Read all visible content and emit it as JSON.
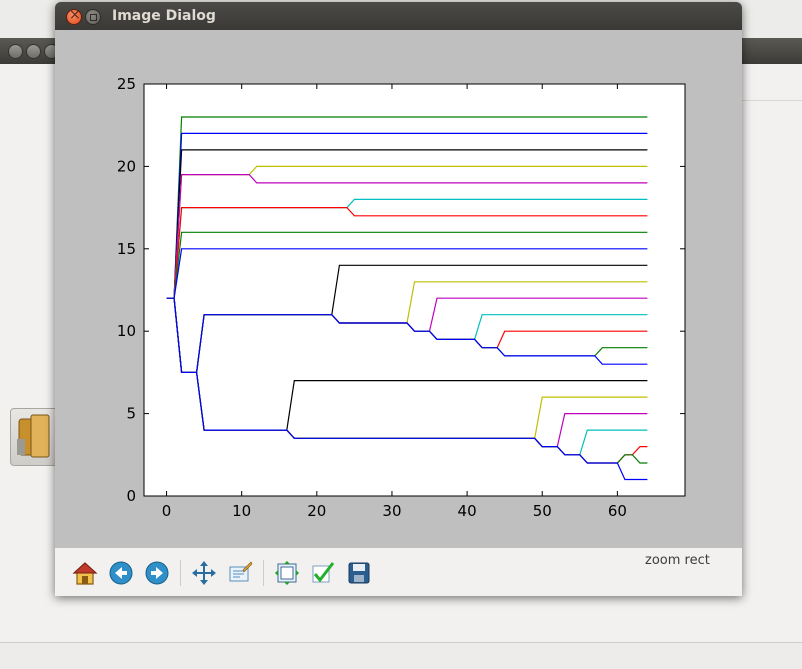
{
  "dialog": {
    "title": "Image Dialog",
    "status": "zoom rect"
  },
  "toolbar": {
    "buttons": [
      {
        "name": "home-button",
        "icon": "home-icon"
      },
      {
        "name": "back-button",
        "icon": "back-arrow-icon"
      },
      {
        "name": "forward-button",
        "icon": "forward-arrow-icon"
      },
      {
        "name": "pan-button",
        "icon": "move-cross-icon"
      },
      {
        "name": "zoom-button",
        "icon": "zoom-rect-icon"
      },
      {
        "name": "subplots-button",
        "icon": "configure-subplots-icon"
      },
      {
        "name": "edit-axes-button",
        "icon": "checkmark-icon"
      },
      {
        "name": "save-button",
        "icon": "floppy-disk-icon"
      }
    ]
  },
  "chart_data": {
    "type": "line",
    "title": "",
    "xlabel": "",
    "ylabel": "",
    "xlim": [
      -3,
      69
    ],
    "ylim": [
      0,
      25
    ],
    "xticks": [
      "0",
      "10",
      "20",
      "30",
      "40",
      "50",
      "60"
    ],
    "yticks": [
      "0",
      "5",
      "10",
      "15",
      "20",
      "25"
    ],
    "grid": false,
    "series": [
      {
        "color": "#007f00",
        "points": [
          [
            0,
            12
          ],
          [
            1,
            12
          ],
          [
            2,
            23
          ],
          [
            64,
            23
          ]
        ]
      },
      {
        "color": "#0000ff",
        "points": [
          [
            0,
            12
          ],
          [
            1,
            12
          ],
          [
            2,
            22
          ],
          [
            64,
            22
          ]
        ]
      },
      {
        "color": "#000000",
        "points": [
          [
            0,
            12
          ],
          [
            1,
            12
          ],
          [
            2,
            21
          ],
          [
            64,
            21
          ]
        ]
      },
      {
        "color": "#bfbf00",
        "points": [
          [
            0,
            12
          ],
          [
            1,
            12
          ],
          [
            2,
            19.5
          ],
          [
            11,
            19.5
          ],
          [
            12,
            20
          ],
          [
            64,
            20
          ]
        ]
      },
      {
        "color": "#bf00bf",
        "points": [
          [
            0,
            12
          ],
          [
            1,
            12
          ],
          [
            2,
            19.5
          ],
          [
            11,
            19.5
          ],
          [
            12,
            19
          ],
          [
            64,
            19
          ]
        ]
      },
      {
        "color": "#00bfbf",
        "points": [
          [
            0,
            12
          ],
          [
            1,
            12
          ],
          [
            2,
            17.5
          ],
          [
            24,
            17.5
          ],
          [
            25,
            18
          ],
          [
            64,
            18
          ]
        ]
      },
      {
        "color": "#ff0000",
        "points": [
          [
            0,
            12
          ],
          [
            1,
            12
          ],
          [
            2,
            17.5
          ],
          [
            24,
            17.5
          ],
          [
            25,
            17
          ],
          [
            64,
            17
          ]
        ]
      },
      {
        "color": "#007f00",
        "points": [
          [
            0,
            12
          ],
          [
            1,
            12
          ],
          [
            2,
            16
          ],
          [
            64,
            16
          ]
        ]
      },
      {
        "color": "#0000ff",
        "points": [
          [
            0,
            12
          ],
          [
            1,
            12
          ],
          [
            2,
            15
          ],
          [
            64,
            15
          ]
        ]
      },
      {
        "color": "#000000",
        "points": [
          [
            0,
            12
          ],
          [
            1,
            12
          ],
          [
            2,
            7.5
          ],
          [
            4,
            7.5
          ],
          [
            5,
            11
          ],
          [
            22,
            11
          ],
          [
            23,
            14
          ],
          [
            64,
            14
          ]
        ]
      },
      {
        "color": "#bfbf00",
        "points": [
          [
            0,
            12
          ],
          [
            1,
            12
          ],
          [
            2,
            7.5
          ],
          [
            4,
            7.5
          ],
          [
            5,
            11
          ],
          [
            22,
            11
          ],
          [
            23,
            10.5
          ],
          [
            32,
            10.5
          ],
          [
            33,
            13
          ],
          [
            64,
            13
          ]
        ]
      },
      {
        "color": "#bf00bf",
        "points": [
          [
            0,
            12
          ],
          [
            1,
            12
          ],
          [
            2,
            7.5
          ],
          [
            4,
            7.5
          ],
          [
            5,
            11
          ],
          [
            22,
            11
          ],
          [
            23,
            10.5
          ],
          [
            32,
            10.5
          ],
          [
            33,
            10
          ],
          [
            35,
            10
          ],
          [
            36,
            12
          ],
          [
            64,
            12
          ]
        ]
      },
      {
        "color": "#00bfbf",
        "points": [
          [
            0,
            12
          ],
          [
            1,
            12
          ],
          [
            2,
            7.5
          ],
          [
            4,
            7.5
          ],
          [
            5,
            11
          ],
          [
            22,
            11
          ],
          [
            23,
            10.5
          ],
          [
            32,
            10.5
          ],
          [
            33,
            10
          ],
          [
            35,
            10
          ],
          [
            36,
            9.5
          ],
          [
            41,
            9.5
          ],
          [
            42,
            11
          ],
          [
            64,
            11
          ]
        ]
      },
      {
        "color": "#ff0000",
        "points": [
          [
            0,
            12
          ],
          [
            1,
            12
          ],
          [
            2,
            7.5
          ],
          [
            4,
            7.5
          ],
          [
            5,
            11
          ],
          [
            22,
            11
          ],
          [
            23,
            10.5
          ],
          [
            32,
            10.5
          ],
          [
            33,
            10
          ],
          [
            35,
            10
          ],
          [
            36,
            9.5
          ],
          [
            41,
            9.5
          ],
          [
            42,
            9
          ],
          [
            44,
            9
          ],
          [
            45,
            10
          ],
          [
            64,
            10
          ]
        ]
      },
      {
        "color": "#007f00",
        "points": [
          [
            0,
            12
          ],
          [
            1,
            12
          ],
          [
            2,
            7.5
          ],
          [
            4,
            7.5
          ],
          [
            5,
            11
          ],
          [
            22,
            11
          ],
          [
            23,
            10.5
          ],
          [
            32,
            10.5
          ],
          [
            33,
            10
          ],
          [
            35,
            10
          ],
          [
            36,
            9.5
          ],
          [
            41,
            9.5
          ],
          [
            42,
            9
          ],
          [
            44,
            9
          ],
          [
            45,
            8.5
          ],
          [
            57,
            8.5
          ],
          [
            58,
            9
          ],
          [
            64,
            9
          ]
        ]
      },
      {
        "color": "#0000ff",
        "points": [
          [
            0,
            12
          ],
          [
            1,
            12
          ],
          [
            2,
            7.5
          ],
          [
            4,
            7.5
          ],
          [
            5,
            11
          ],
          [
            22,
            11
          ],
          [
            23,
            10.5
          ],
          [
            32,
            10.5
          ],
          [
            33,
            10
          ],
          [
            35,
            10
          ],
          [
            36,
            9.5
          ],
          [
            41,
            9.5
          ],
          [
            42,
            9
          ],
          [
            44,
            9
          ],
          [
            45,
            8.5
          ],
          [
            57,
            8.5
          ],
          [
            58,
            8
          ],
          [
            64,
            8
          ]
        ]
      },
      {
        "color": "#000000",
        "points": [
          [
            0,
            12
          ],
          [
            1,
            12
          ],
          [
            2,
            7.5
          ],
          [
            4,
            7.5
          ],
          [
            5,
            4
          ],
          [
            16,
            4
          ],
          [
            17,
            7
          ],
          [
            64,
            7
          ]
        ]
      },
      {
        "color": "#bfbf00",
        "points": [
          [
            0,
            12
          ],
          [
            1,
            12
          ],
          [
            2,
            7.5
          ],
          [
            4,
            7.5
          ],
          [
            5,
            4
          ],
          [
            16,
            4
          ],
          [
            17,
            3.5
          ],
          [
            49,
            3.5
          ],
          [
            50,
            6
          ],
          [
            64,
            6
          ]
        ]
      },
      {
        "color": "#bf00bf",
        "points": [
          [
            0,
            12
          ],
          [
            1,
            12
          ],
          [
            2,
            7.5
          ],
          [
            4,
            7.5
          ],
          [
            5,
            4
          ],
          [
            16,
            4
          ],
          [
            17,
            3.5
          ],
          [
            49,
            3.5
          ],
          [
            50,
            3
          ],
          [
            52,
            3
          ],
          [
            53,
            5
          ],
          [
            64,
            5
          ]
        ]
      },
      {
        "color": "#00bfbf",
        "points": [
          [
            0,
            12
          ],
          [
            1,
            12
          ],
          [
            2,
            7.5
          ],
          [
            4,
            7.5
          ],
          [
            5,
            4
          ],
          [
            16,
            4
          ],
          [
            17,
            3.5
          ],
          [
            49,
            3.5
          ],
          [
            50,
            3
          ],
          [
            52,
            3
          ],
          [
            53,
            2.5
          ],
          [
            55,
            2.5
          ],
          [
            56,
            4
          ],
          [
            64,
            4
          ]
        ]
      },
      {
        "color": "#ff0000",
        "points": [
          [
            0,
            12
          ],
          [
            1,
            12
          ],
          [
            2,
            7.5
          ],
          [
            4,
            7.5
          ],
          [
            5,
            4
          ],
          [
            16,
            4
          ],
          [
            17,
            3.5
          ],
          [
            49,
            3.5
          ],
          [
            50,
            3
          ],
          [
            52,
            3
          ],
          [
            53,
            2.5
          ],
          [
            55,
            2.5
          ],
          [
            56,
            2
          ],
          [
            60,
            2
          ],
          [
            61,
            2.5
          ],
          [
            62,
            2.5
          ],
          [
            63,
            3
          ],
          [
            64,
            3
          ]
        ]
      },
      {
        "color": "#007f00",
        "points": [
          [
            0,
            12
          ],
          [
            1,
            12
          ],
          [
            2,
            7.5
          ],
          [
            4,
            7.5
          ],
          [
            5,
            4
          ],
          [
            16,
            4
          ],
          [
            17,
            3.5
          ],
          [
            49,
            3.5
          ],
          [
            50,
            3
          ],
          [
            52,
            3
          ],
          [
            53,
            2.5
          ],
          [
            55,
            2.5
          ],
          [
            56,
            2
          ],
          [
            60,
            2
          ],
          [
            61,
            2.5
          ],
          [
            62,
            2.5
          ],
          [
            63,
            2
          ],
          [
            64,
            2
          ]
        ]
      },
      {
        "color": "#0000ff",
        "points": [
          [
            0,
            12
          ],
          [
            1,
            12
          ],
          [
            2,
            7.5
          ],
          [
            4,
            7.5
          ],
          [
            5,
            4
          ],
          [
            16,
            4
          ],
          [
            17,
            3.5
          ],
          [
            49,
            3.5
          ],
          [
            50,
            3
          ],
          [
            52,
            3
          ],
          [
            53,
            2.5
          ],
          [
            55,
            2.5
          ],
          [
            56,
            2
          ],
          [
            60,
            2
          ],
          [
            61,
            1
          ],
          [
            64,
            1
          ]
        ]
      }
    ]
  }
}
